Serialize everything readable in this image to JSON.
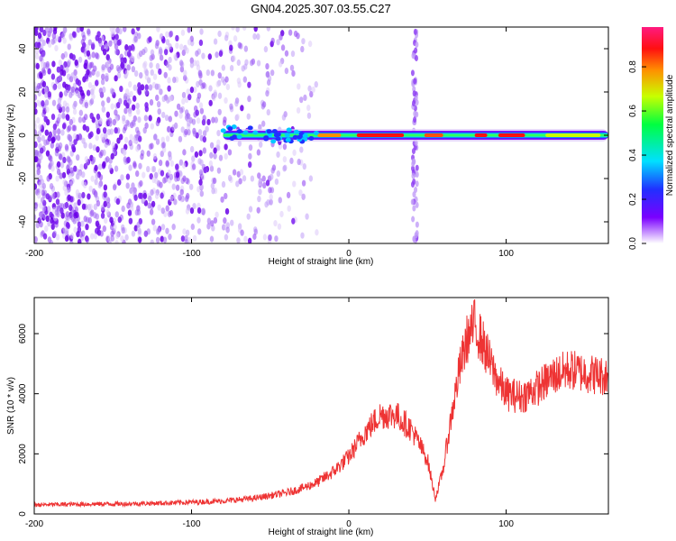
{
  "title": "GN04.2025.307.03.55.C27",
  "chart_data": [
    {
      "type": "heatmap",
      "xlabel": "Height of straight line (km)",
      "ylabel": "Frequency (Hz)",
      "xlim": [
        -200,
        165
      ],
      "ylim": [
        -50,
        50
      ],
      "xticks": [
        -200,
        -100,
        0,
        100
      ],
      "yticks": [
        -40,
        -20,
        0,
        20,
        40
      ],
      "colorbar": {
        "label": "Normalized spectral amplitude",
        "range": [
          0.0,
          0.98
        ],
        "ticks": [
          0.0,
          0.2,
          0.4,
          0.6,
          0.8
        ]
      },
      "features": {
        "noise_region_x": [
          -200,
          -20
        ],
        "carrier_line_x": [
          -80,
          165
        ],
        "carrier_freq_hz": 0,
        "vertical_interference_x": 42
      }
    },
    {
      "type": "line",
      "xlabel": "Height of straight line (km)",
      "ylabel": "SNR (10 * v/v)",
      "xlim": [
        -200,
        165
      ],
      "ylim": [
        0,
        7200
      ],
      "xticks": [
        -200,
        -100,
        0,
        100
      ],
      "yticks": [
        0,
        2000,
        4000,
        6000
      ],
      "grid": false,
      "color": "#ee3333",
      "series": [
        {
          "x": [
            -200,
            -180,
            -160,
            -140,
            -120,
            -100,
            -80,
            -60,
            -40,
            -30,
            -20,
            -10,
            0,
            10,
            20,
            30,
            40,
            50,
            55,
            60,
            65,
            70,
            75,
            80,
            85,
            90,
            95,
            100,
            110,
            120,
            130,
            140,
            150,
            160,
            165
          ],
          "y": [
            300,
            320,
            330,
            340,
            360,
            390,
            430,
            520,
            700,
            850,
            1050,
            1400,
            1900,
            2700,
            3300,
            3300,
            2800,
            1800,
            500,
            1500,
            3200,
            4700,
            5800,
            6300,
            5700,
            5000,
            4400,
            4000,
            3900,
            4200,
            4600,
            4800,
            4700,
            4600,
            4600
          ]
        }
      ]
    }
  ]
}
